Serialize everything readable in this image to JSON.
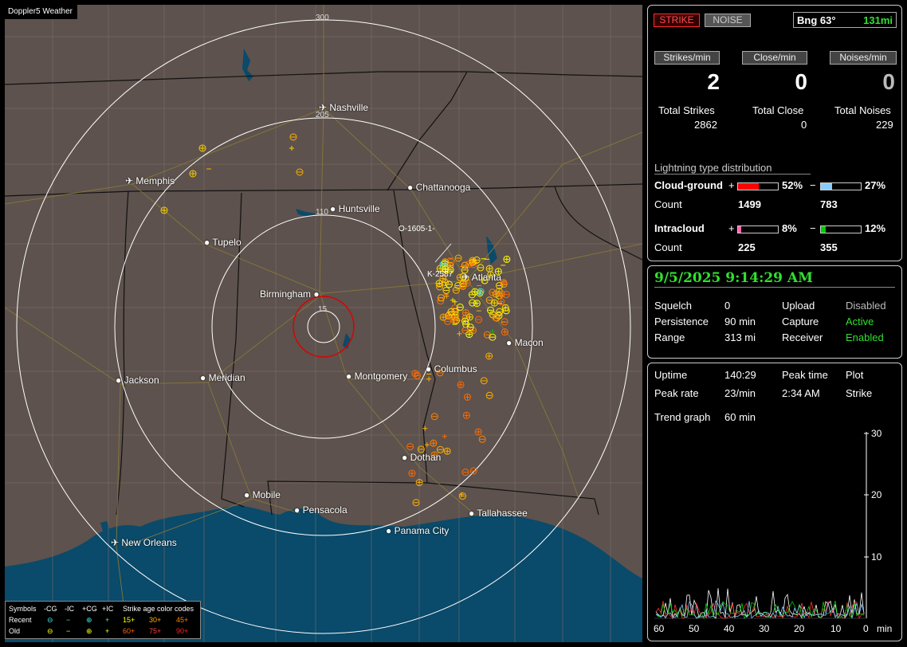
{
  "app": {
    "title": "Doppler5 Weather"
  },
  "map": {
    "ring_labels": [
      "300",
      "205",
      "110",
      "15"
    ],
    "storm_label": "O-1605-1-",
    "storm_label_2": "K-2587",
    "cities": [
      {
        "name": "Nashville",
        "airport": true
      },
      {
        "name": "Memphis",
        "airport": true
      },
      {
        "name": "Chattanooga",
        "airport": false
      },
      {
        "name": "Huntsville",
        "airport": false
      },
      {
        "name": "Tupelo",
        "airport": false
      },
      {
        "name": "Atlanta",
        "airport": true
      },
      {
        "name": "Birmingham",
        "airport": false
      },
      {
        "name": "Macon",
        "airport": false
      },
      {
        "name": "Jackson",
        "airport": true
      },
      {
        "name": "Meridian",
        "airport": false
      },
      {
        "name": "Montgomery",
        "airport": false
      },
      {
        "name": "Columbus",
        "airport": false
      },
      {
        "name": "Dothan",
        "airport": false
      },
      {
        "name": "Mobile",
        "airport": false
      },
      {
        "name": "Pensacola",
        "airport": false
      },
      {
        "name": "Tallahassee",
        "airport": false
      },
      {
        "name": "Panama City",
        "airport": false
      },
      {
        "name": "New Orleans",
        "airport": true
      }
    ],
    "colors": {
      "land": "#5d524d",
      "water": "#0a4a6a",
      "rings": "#ffffff",
      "center_ring": "#dd0000",
      "roads": "#8a7a3a",
      "county_lines": "#7d706a"
    },
    "legend": {
      "title_symbols": "Symbols",
      "cols": [
        "-CG",
        "-IC",
        "+CG",
        "+IC"
      ],
      "title_age": "Strike age color codes",
      "recent_label": "Recent",
      "old_label": "Old",
      "recent_ages": [
        "15+",
        "30+",
        "45+"
      ],
      "old_ages": [
        "60+",
        "75+",
        "90+"
      ],
      "age_colors": [
        "#ffff00",
        "#ffb000",
        "#ff8000",
        "#ff6a00",
        "#ff4040",
        "#ff2020"
      ]
    }
  },
  "status": {
    "strike_button": "STRIKE",
    "noise_button": "NOISE",
    "bearing": "Bng 63°",
    "distance": "131mi",
    "rates": {
      "strikes_label": "Strikes/min",
      "strikes_value": "2",
      "close_label": "Close/min",
      "close_value": "0",
      "noises_label": "Noises/min",
      "noises_value": "0"
    },
    "totals": {
      "strikes_label": "Total Strikes",
      "strikes_value": "2862",
      "close_label": "Total Close",
      "close_value": "0",
      "noises_label": "Total Noises",
      "noises_value": "229"
    },
    "distribution": {
      "title": "Lightning type distribution",
      "cg_label": "Cloud-ground",
      "cg_pos_sign": "+",
      "cg_pos_pct": "52%",
      "cg_pos_fraction": 0.52,
      "cg_neg_sign": "−",
      "cg_neg_pct": "27%",
      "cg_neg_fraction": 0.27,
      "count_label": "Count",
      "cg_pos_count": "1499",
      "cg_neg_count": "783",
      "ic_label": "Intracloud",
      "ic_pos_sign": "+",
      "ic_pos_pct": "8%",
      "ic_pos_fraction": 0.08,
      "ic_neg_sign": "−",
      "ic_neg_pct": "12%",
      "ic_neg_fraction": 0.12,
      "ic_pos_count": "225",
      "ic_neg_count": "355",
      "colors": {
        "cg_pos": "#ff0000",
        "cg_neg": "#88ccff",
        "ic_pos": "#ff66aa",
        "ic_neg": "#00cc00"
      }
    }
  },
  "settings": {
    "datetime": "9/5/2025 9:14:29 AM",
    "squelch_label": "Squelch",
    "squelch_value": "0",
    "upload_label": "Upload",
    "upload_value": "Disabled",
    "persistence_label": "Persistence",
    "persistence_value": "90 min",
    "capture_label": "Capture",
    "capture_value": "Active",
    "range_label": "Range",
    "range_value": "313 mi",
    "receiver_label": "Receiver",
    "receiver_value": "Enabled"
  },
  "trend": {
    "uptime_label": "Uptime",
    "uptime_value": "140:29",
    "peak_time_label": "Peak time",
    "peak_time_value": "2:34 AM",
    "plot_label": "Plot",
    "plot_value": "Strike",
    "peak_rate_label": "Peak rate",
    "peak_rate_value": "23/min",
    "trend_graph_label": "Trend graph",
    "trend_graph_value": "60 min",
    "y_ticks": [
      "30",
      "20",
      "10"
    ],
    "x_ticks": [
      "60",
      "50",
      "40",
      "30",
      "20",
      "10",
      "0",
      "min"
    ]
  }
}
